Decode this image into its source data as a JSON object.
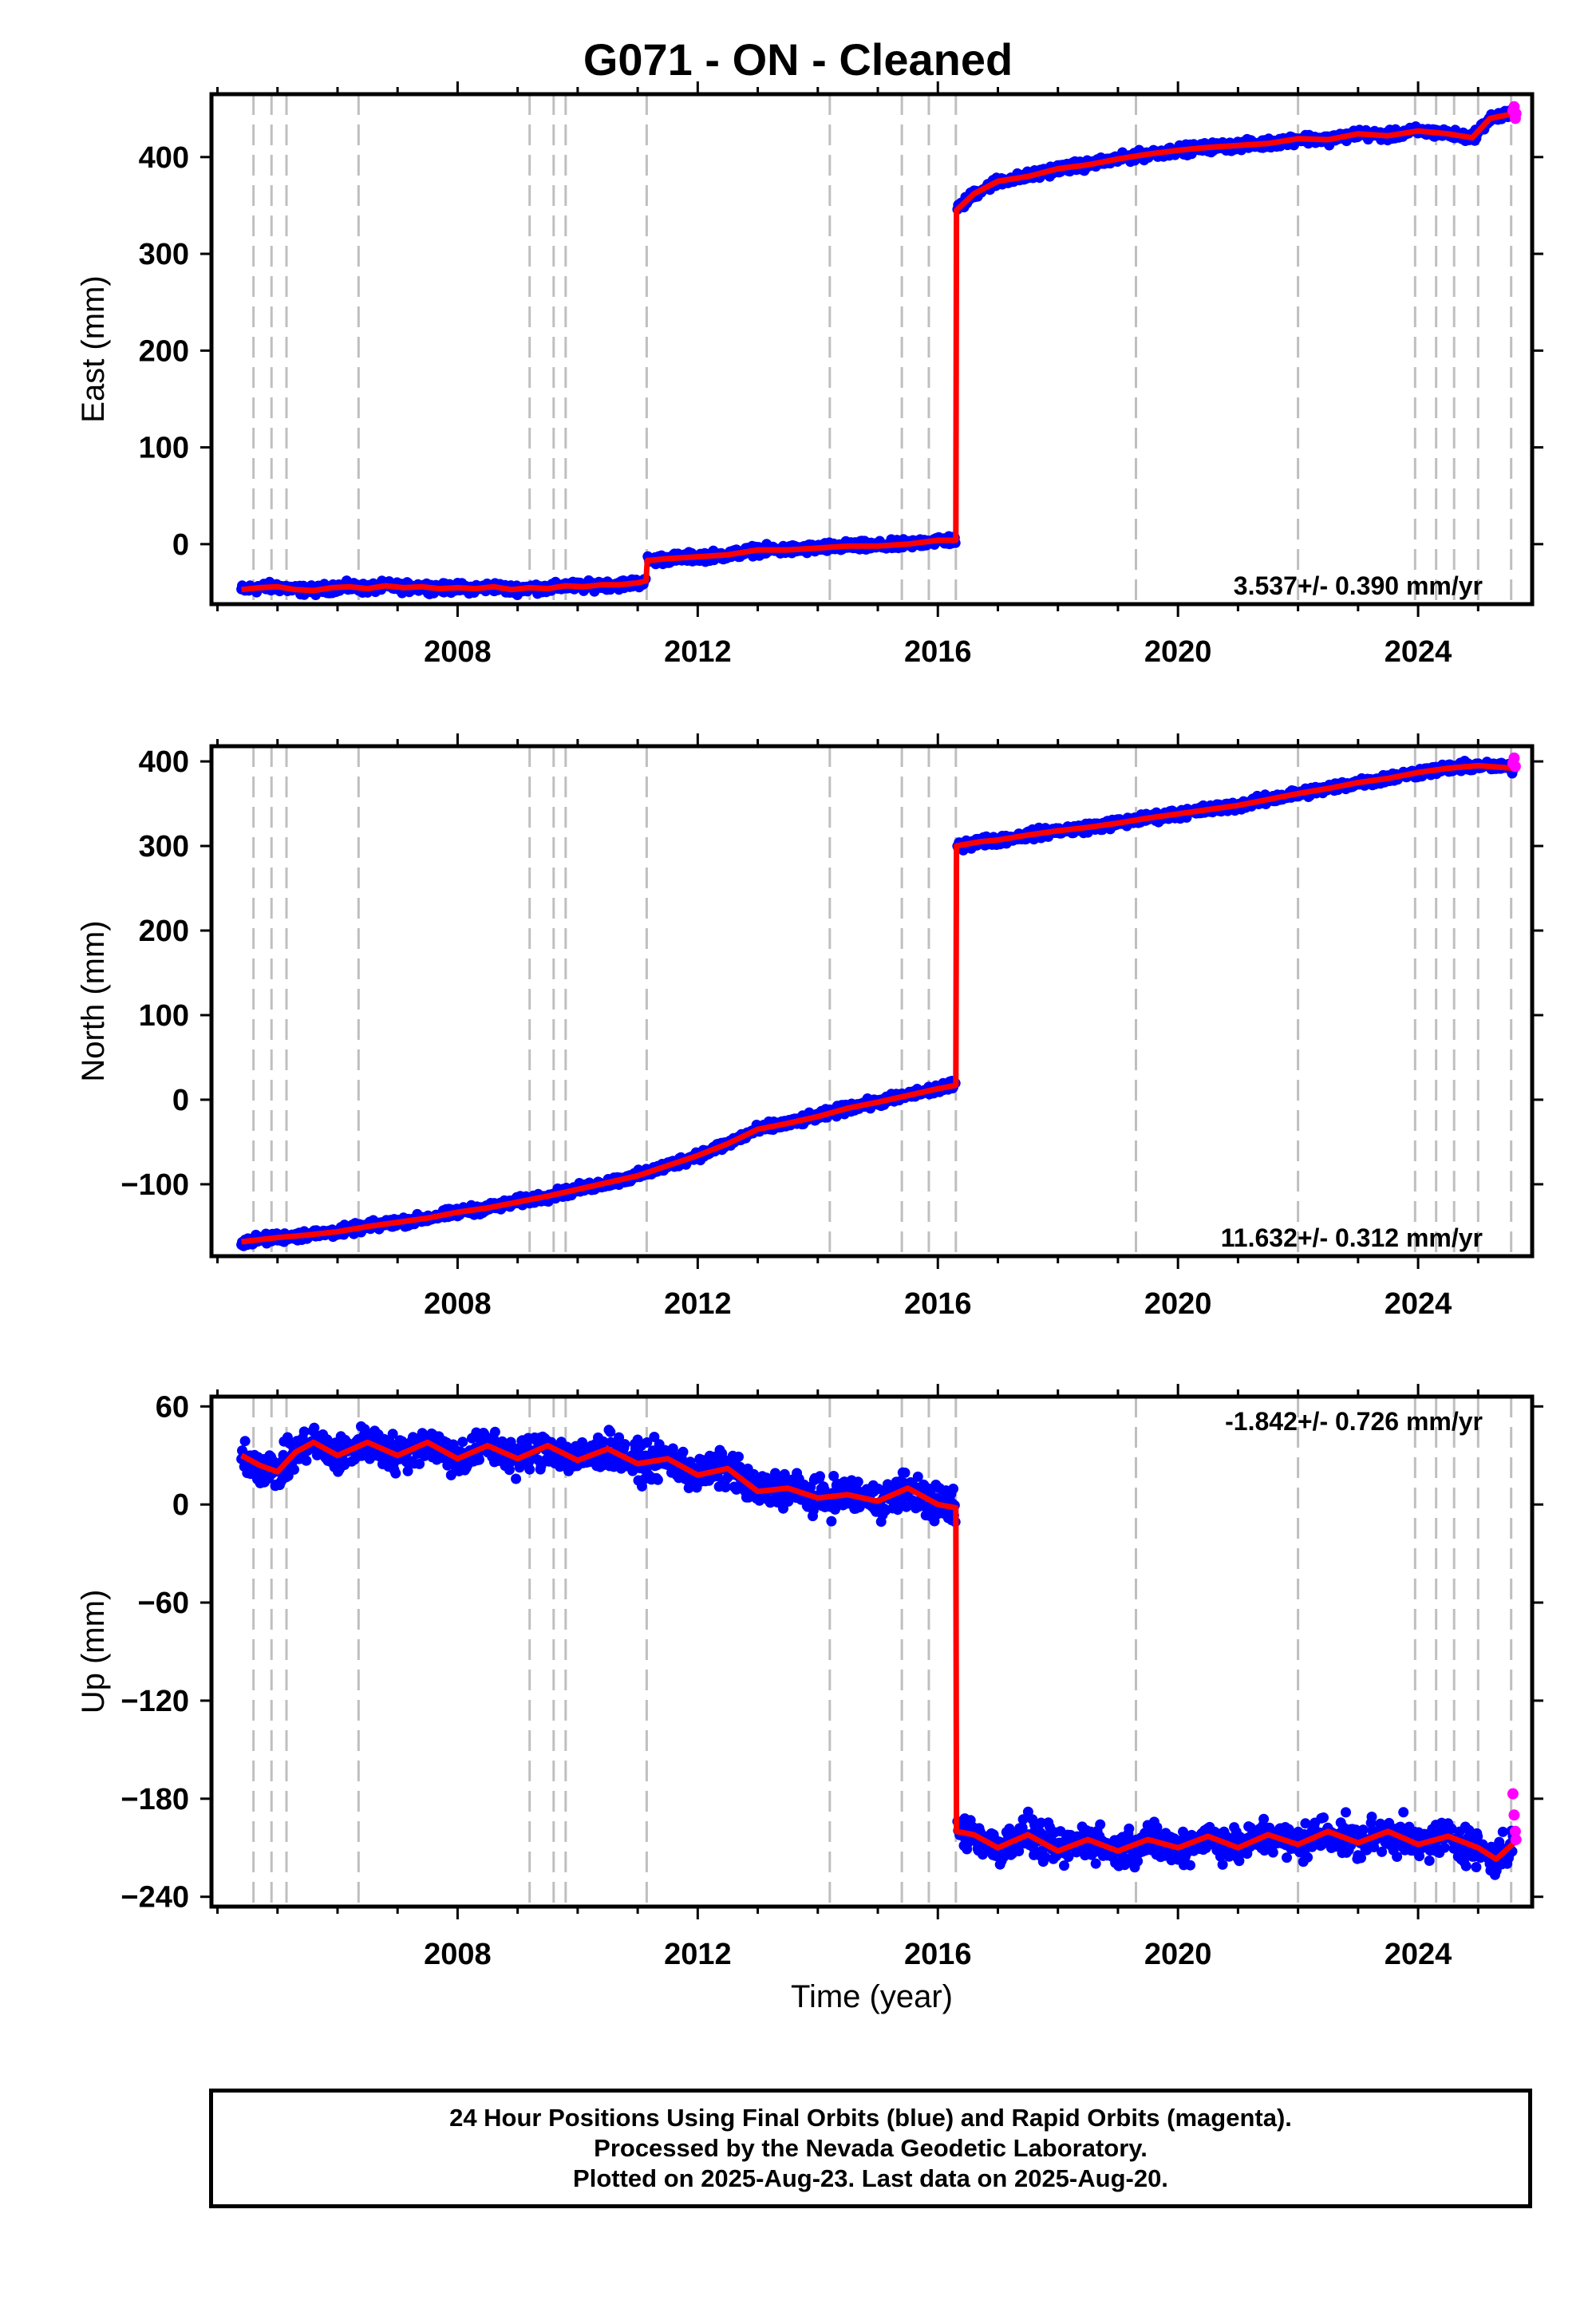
{
  "title": "G071  - ON - Cleaned",
  "xlabel": "Time (year)",
  "footer": {
    "line1": "24 Hour Positions Using Final Orbits (blue) and Rapid Orbits (magenta).",
    "line2": "Processed by the Nevada Geodetic Laboratory.",
    "line3": "Plotted on 2025-Aug-23. Last data on 2025-Aug-20."
  },
  "colors": {
    "final": "#0000ff",
    "rapid": "#ff00ff",
    "model": "#ff0000",
    "event_lines": "#bfbfbf"
  },
  "chart_data": [
    {
      "type": "scatter",
      "ylabel": "East (mm)",
      "rate_label": "3.537+/- 0.390 mm/yr",
      "xlim": [
        2003.9,
        2025.9
      ],
      "ylim": [
        -62,
        465
      ],
      "yticks": [
        0,
        100,
        200,
        300,
        400
      ],
      "xticks": [
        2008,
        2012,
        2016,
        2020,
        2024
      ],
      "event_lines": [
        2004.6,
        2004.9,
        2005.15,
        2006.35,
        2009.2,
        2009.6,
        2009.8,
        2011.15,
        2014.2,
        2015.4,
        2015.85,
        2016.3,
        2019.3,
        2022.0,
        2023.95,
        2024.3,
        2024.6,
        2025.0,
        2025.55
      ],
      "model": {
        "x": [
          2004.4,
          2004.7,
          2005.0,
          2005.3,
          2005.6,
          2005.9,
          2006.2,
          2006.5,
          2006.8,
          2007.1,
          2007.4,
          2007.7,
          2008.0,
          2008.3,
          2008.6,
          2008.9,
          2009.2,
          2009.5,
          2009.8,
          2010.1,
          2010.4,
          2010.7,
          2011.0,
          2011.14,
          2011.16,
          2011.5,
          2012.0,
          2012.5,
          2013.0,
          2013.5,
          2014.0,
          2014.5,
          2015.0,
          2015.5,
          2016.0,
          2016.3,
          2016.31,
          2016.6,
          2017.0,
          2017.5,
          2018.0,
          2018.5,
          2019.0,
          2019.5,
          2020.0,
          2020.5,
          2021.0,
          2021.5,
          2022.0,
          2022.5,
          2023.0,
          2023.5,
          2024.0,
          2024.5,
          2024.9,
          2025.2,
          2025.6
        ],
        "y": [
          -47,
          -45,
          -44,
          -47,
          -48,
          -45,
          -44,
          -46,
          -43,
          -45,
          -44,
          -46,
          -45,
          -46,
          -44,
          -47,
          -45,
          -46,
          -43,
          -44,
          -42,
          -42,
          -40,
          -38,
          -17,
          -15,
          -13,
          -11,
          -6,
          -6,
          -4,
          -2,
          -2,
          0,
          4,
          4,
          345,
          362,
          375,
          380,
          388,
          392,
          398,
          403,
          407,
          410,
          412,
          414,
          419,
          418,
          424,
          422,
          427,
          424,
          420,
          440,
          445
        ]
      },
      "rapid": {
        "x": [
          2025.58,
          2025.6,
          2025.62,
          2025.63
        ],
        "y": [
          448,
          452,
          440,
          445
        ]
      }
    },
    {
      "type": "scatter",
      "ylabel": "North (mm)",
      "rate_label": "11.632+/- 0.312 mm/yr",
      "xlim": [
        2003.9,
        2025.9
      ],
      "ylim": [
        -185,
        418
      ],
      "yticks": [
        -100,
        0,
        100,
        200,
        300,
        400
      ],
      "xticks": [
        2008,
        2012,
        2016,
        2020,
        2024
      ],
      "event_lines": [
        2004.6,
        2004.9,
        2005.15,
        2006.35,
        2009.2,
        2009.6,
        2009.8,
        2011.15,
        2014.2,
        2015.4,
        2015.85,
        2016.3,
        2019.3,
        2022.0,
        2023.95,
        2024.3,
        2024.6,
        2025.0,
        2025.55
      ],
      "model": {
        "x": [
          2004.4,
          2005.0,
          2005.5,
          2006.0,
          2006.5,
          2007.0,
          2007.5,
          2008.0,
          2008.5,
          2009.0,
          2009.5,
          2010.0,
          2010.5,
          2011.0,
          2011.5,
          2012.0,
          2012.5,
          2013.0,
          2013.5,
          2014.0,
          2014.5,
          2015.0,
          2015.5,
          2016.0,
          2016.3,
          2016.31,
          2016.7,
          2017.0,
          2017.5,
          2018.0,
          2018.5,
          2019.0,
          2019.5,
          2020.0,
          2020.5,
          2021.0,
          2021.5,
          2022.0,
          2022.5,
          2023.0,
          2023.5,
          2024.0,
          2024.5,
          2025.0,
          2025.6
        ],
        "y": [
          -168,
          -163,
          -160,
          -156,
          -150,
          -145,
          -140,
          -133,
          -128,
          -121,
          -114,
          -106,
          -98,
          -90,
          -78,
          -66,
          -52,
          -35,
          -28,
          -20,
          -10,
          -3,
          5,
          13,
          17,
          300,
          305,
          307,
          313,
          318,
          322,
          327,
          333,
          338,
          343,
          348,
          355,
          362,
          368,
          375,
          380,
          387,
          392,
          395,
          392
        ]
      },
      "rapid": {
        "x": [
          2025.58,
          2025.6,
          2025.62
        ],
        "y": [
          398,
          404,
          394
        ]
      }
    },
    {
      "type": "scatter",
      "ylabel": "Up (mm)",
      "rate_label": "-1.842+/- 0.726 mm/yr",
      "xlim": [
        2003.9,
        2025.9
      ],
      "ylim": [
        -246,
        66
      ],
      "yticks": [
        -240,
        -180,
        -120,
        -60,
        0,
        60
      ],
      "xticks": [
        2008,
        2012,
        2016,
        2020,
        2024
      ],
      "event_lines": [
        2004.6,
        2004.9,
        2005.15,
        2006.35,
        2009.2,
        2009.6,
        2009.8,
        2011.15,
        2014.2,
        2015.4,
        2015.85,
        2016.3,
        2019.3,
        2022.0,
        2023.95,
        2024.3,
        2024.6,
        2025.0,
        2025.55
      ],
      "model": {
        "x": [
          2004.4,
          2004.7,
          2005.0,
          2005.3,
          2005.6,
          2006.0,
          2006.5,
          2007.0,
          2007.5,
          2008.0,
          2008.5,
          2009.0,
          2009.5,
          2010.0,
          2010.5,
          2011.0,
          2011.5,
          2012.0,
          2012.5,
          2013.0,
          2013.5,
          2014.0,
          2014.5,
          2015.0,
          2015.5,
          2016.0,
          2016.3,
          2016.31,
          2016.6,
          2017.0,
          2017.5,
          2018.0,
          2018.5,
          2019.0,
          2019.5,
          2020.0,
          2020.5,
          2021.0,
          2021.5,
          2022.0,
          2022.5,
          2023.0,
          2023.5,
          2024.0,
          2024.5,
          2025.0,
          2025.3,
          2025.6
        ],
        "y": [
          30,
          24,
          20,
          32,
          38,
          30,
          38,
          30,
          38,
          28,
          36,
          28,
          36,
          27,
          34,
          25,
          28,
          18,
          22,
          8,
          10,
          4,
          6,
          2,
          10,
          0,
          -2,
          -200,
          -202,
          -210,
          -202,
          -212,
          -205,
          -212,
          -205,
          -210,
          -203,
          -210,
          -202,
          -208,
          -200,
          -207,
          -200,
          -208,
          -203,
          -210,
          -217,
          -207
        ]
      },
      "rapid": {
        "x": [
          2025.58,
          2025.6,
          2025.62,
          2025.63
        ],
        "y": [
          -177,
          -190,
          -200,
          -205
        ]
      }
    }
  ]
}
